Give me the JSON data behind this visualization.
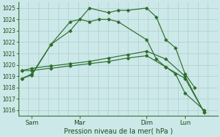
{
  "title": "Pression niveau de la mer( hPa )",
  "bg_color": "#cce8e8",
  "grid_color": "#aacece",
  "line_color": "#2d6e2d",
  "ylim": [
    1015.5,
    1025.5
  ],
  "yticks": [
    1016,
    1017,
    1018,
    1019,
    1020,
    1021,
    1022,
    1023,
    1024,
    1025
  ],
  "xtick_labels": [
    "Sam",
    "Mar",
    "Dim",
    "Lun"
  ],
  "xtick_positions": [
    0.5,
    3.0,
    6.5,
    8.5
  ],
  "xlim": [
    -0.2,
    10.2
  ],
  "num_vgrid": 20,
  "lines": [
    {
      "x": [
        0.0,
        0.5,
        1.5,
        2.5,
        3.5,
        4.5,
        5.0,
        5.5,
        6.5,
        7.0,
        7.5,
        8.0,
        8.5,
        9.0
      ],
      "y": [
        1018.8,
        1019.1,
        1021.8,
        1023.0,
        1025.0,
        1024.6,
        1024.8,
        1024.8,
        1025.0,
        1024.2,
        1022.2,
        1021.5,
        1019.2,
        1018.0
      ],
      "marker": "D",
      "markersize": 2.5
    },
    {
      "x": [
        0.0,
        0.5,
        1.5,
        2.5,
        3.0,
        3.5,
        4.0,
        4.5,
        5.0,
        6.5,
        7.0,
        7.5,
        8.0,
        8.5,
        9.5
      ],
      "y": [
        1018.8,
        1019.2,
        1021.8,
        1023.8,
        1024.0,
        1023.8,
        1024.0,
        1024.0,
        1023.8,
        1022.2,
        1020.5,
        1019.8,
        1019.2,
        1017.5,
        1016.0
      ],
      "marker": "D",
      "markersize": 2.5
    },
    {
      "x": [
        0.0,
        0.5,
        1.5,
        2.5,
        3.5,
        4.5,
        5.5,
        6.5,
        7.5,
        8.5,
        9.5
      ],
      "y": [
        1019.5,
        1019.7,
        1019.9,
        1020.1,
        1020.3,
        1020.6,
        1020.9,
        1021.2,
        1020.5,
        1019.0,
        1015.8
      ],
      "marker": "D",
      "markersize": 2.5
    },
    {
      "x": [
        0.0,
        0.5,
        1.5,
        2.5,
        3.5,
        4.5,
        5.5,
        6.5,
        7.5,
        8.5,
        9.5
      ],
      "y": [
        1019.5,
        1019.5,
        1019.7,
        1019.9,
        1020.1,
        1020.3,
        1020.6,
        1020.8,
        1019.8,
        1018.8,
        1015.8
      ],
      "marker": "D",
      "markersize": 2.5
    }
  ]
}
